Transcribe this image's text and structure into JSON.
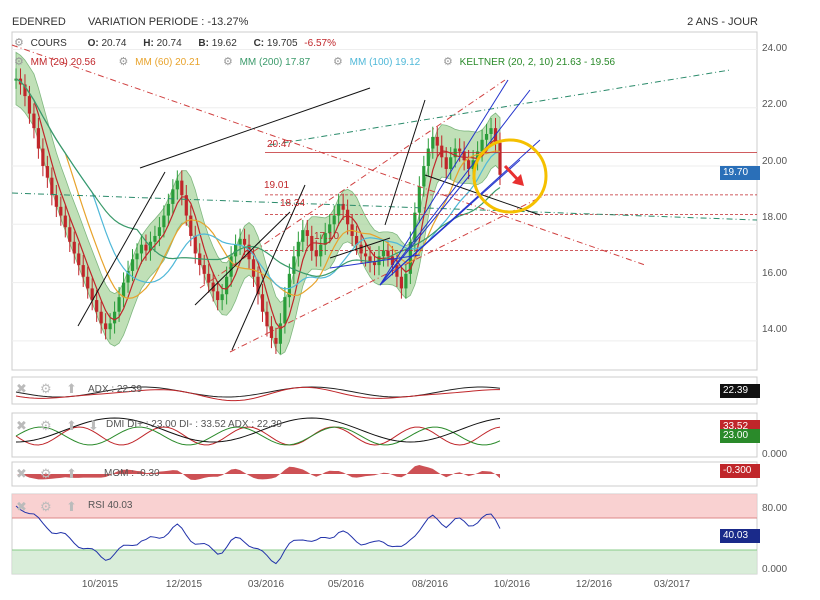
{
  "header": {
    "ticker": "EDENRED",
    "variation_label": "VARIATION PERIODE",
    "variation_value": "-13.27%",
    "period": "2 ANS - JOUR"
  },
  "quote": {
    "series_label": "COURS",
    "open_label": "O:",
    "open": "20.74",
    "high_label": "H:",
    "high": "20.74",
    "low_label": "B:",
    "low": "19.62",
    "close_label": "C:",
    "close": "19.705",
    "change": "-6.57%"
  },
  "indicators": {
    "mm20": "MM (20) 20.56",
    "mm60": "MM (60) 20.21",
    "mm200": "MM (200) 17.87",
    "mm100": "MM (100) 19.12",
    "keltner": "KELTNER (20, 2, 10) 21.63 - 19.56"
  },
  "colors": {
    "up": "#2a9d3a",
    "down": "#c0262a",
    "mm20": "#c0262a",
    "mm60": "#e8a32c",
    "mm200": "#3a9a6a",
    "mm100": "#4fb8d8",
    "keltner_fill": "#a6d39a",
    "rsi_line": "#2233aa",
    "rsi_over": "#f8c6c6",
    "rsi_under": "#cfe8cf",
    "trend_blue": "#2233cc",
    "circle": "#f5c000",
    "arrow": "#e83030"
  },
  "annotations": {
    "l2047": "20.47",
    "l1901": "19.01",
    "l1834": "18.34",
    "l1710": "17.10"
  },
  "panels": {
    "adx": {
      "label": "ADX : 22.39",
      "badge": "22.39"
    },
    "dmi": {
      "label": "DMI DI+ : 23.00 DI- : 33.52 ADX : 22.39",
      "badge_di_minus": "33.52",
      "badge_di_plus": "23.00",
      "zero": "0.000"
    },
    "mom": {
      "label": "MOM : -0.30",
      "badge": "-0.300"
    },
    "rsi": {
      "label": "RSI 40.03",
      "badge": "40.03",
      "t80": "80.00",
      "t0": "0.000"
    }
  },
  "chart_data": {
    "type": "candlestick",
    "y_ticks": [
      "24.00",
      "22.00",
      "20.00",
      "18.00",
      "16.00",
      "14.00"
    ],
    "price_badge": "19.70",
    "x_ticks": [
      "10/2015",
      "12/2015",
      "03/2016",
      "05/2016",
      "08/2016",
      "10/2016",
      "12/2016",
      "03/2017"
    ],
    "ylim": [
      13,
      24.6
    ],
    "close_series": [
      23.0,
      22.8,
      22.4,
      21.8,
      21.3,
      20.6,
      20.0,
      19.6,
      19.0,
      18.6,
      18.3,
      17.9,
      17.4,
      17.0,
      16.6,
      16.2,
      15.8,
      15.4,
      15.0,
      14.6,
      14.4,
      14.6,
      15.0,
      15.5,
      16.0,
      16.4,
      16.8,
      17.0,
      17.3,
      17.1,
      17.4,
      17.6,
      17.9,
      18.3,
      18.7,
      19.2,
      19.5,
      19.0,
      18.3,
      17.6,
      17.0,
      16.6,
      16.3,
      16.0,
      15.7,
      15.4,
      15.6,
      16.2,
      16.9,
      17.3,
      17.5,
      17.3,
      16.8,
      16.2,
      15.6,
      15.0,
      14.5,
      14.1,
      13.9,
      14.6,
      15.5,
      16.3,
      16.9,
      17.4,
      17.8,
      17.6,
      17.1,
      16.9,
      17.3,
      17.7,
      18.0,
      18.3,
      18.7,
      18.5,
      18.0,
      17.6,
      17.3,
      17.0,
      16.9,
      16.7,
      16.6,
      16.9,
      17.1,
      16.9,
      16.6,
      16.2,
      15.8,
      16.3,
      17.4,
      18.4,
      19.3,
      20.0,
      20.6,
      21.0,
      20.7,
      20.3,
      19.9,
      20.3,
      20.6,
      20.5,
      20.2,
      19.9,
      20.2,
      20.5,
      20.9,
      21.1,
      21.3,
      20.8,
      19.7
    ]
  }
}
